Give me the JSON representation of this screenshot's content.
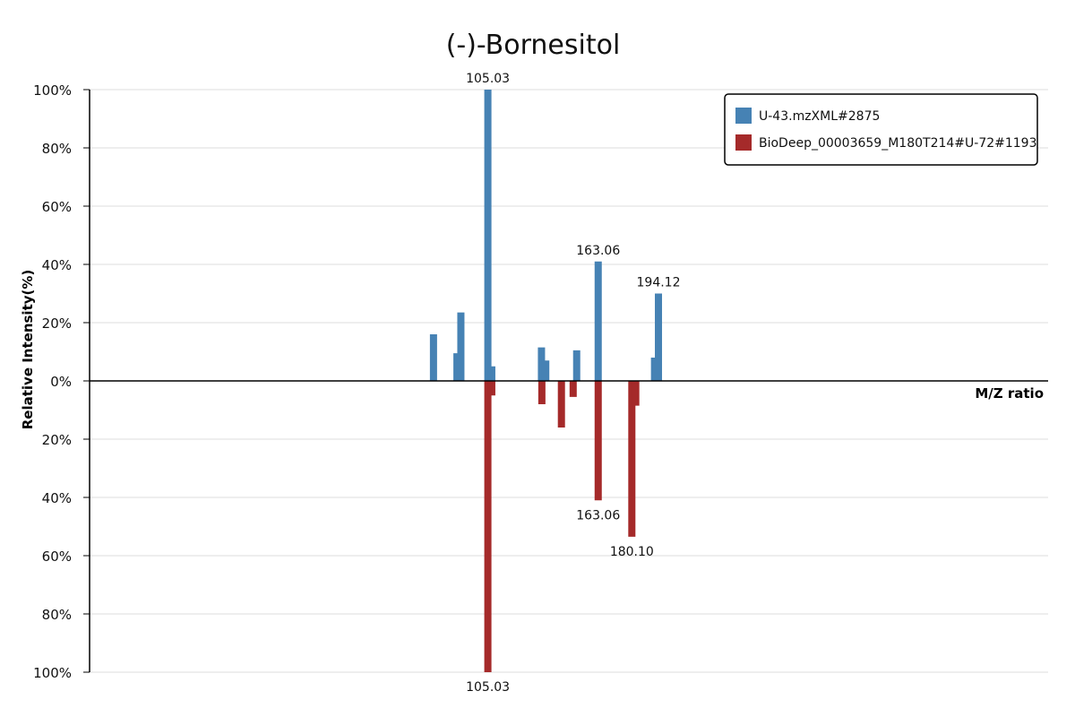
{
  "chart_data": {
    "type": "bar",
    "title": "(-)-Bornesitol",
    "xlabel": "M/Z ratio",
    "ylabel": "Relative Intensity(%)",
    "xlim": [
      0,
      245
    ],
    "ylim_top": [
      0,
      100
    ],
    "ylim_bottom": [
      0,
      100
    ],
    "yticks_top": [
      "100%",
      "80%",
      "60%",
      "40%",
      "20%",
      "0%"
    ],
    "yticks_bottom": [
      "20%",
      "40%",
      "60%",
      "80%",
      "100%"
    ],
    "grid": true,
    "legend_position": "top-right",
    "series": [
      {
        "name": "U-43.mzXML#2875",
        "color": "#4682b4",
        "direction": "up",
        "peaks": [
          {
            "mz": 87.9,
            "intensity": 16
          },
          {
            "mz": 93.9,
            "intensity": 9.5
          },
          {
            "mz": 94.9,
            "intensity": 23.5
          },
          {
            "mz": 101.8,
            "intensity": 100,
            "label": "105.03"
          },
          {
            "mz": 102.8,
            "intensity": 5
          },
          {
            "mz": 115.5,
            "intensity": 11.5
          },
          {
            "mz": 116.6,
            "intensity": 7
          },
          {
            "mz": 124.5,
            "intensity": 10.5
          },
          {
            "mz": 130.0,
            "intensity": 41,
            "label": "163.06"
          },
          {
            "mz": 144.4,
            "intensity": 8
          },
          {
            "mz": 145.4,
            "intensity": 30,
            "label": "194.12"
          }
        ]
      },
      {
        "name": "BioDeep_00003659_M180T214#U-72#1193",
        "color": "#a52a2a",
        "direction": "down",
        "peaks": [
          {
            "mz": 101.8,
            "intensity": 100,
            "label": "105.03"
          },
          {
            "mz": 102.8,
            "intensity": 5
          },
          {
            "mz": 115.6,
            "intensity": 8
          },
          {
            "mz": 120.6,
            "intensity": 16
          },
          {
            "mz": 123.6,
            "intensity": 5.5
          },
          {
            "mz": 130.0,
            "intensity": 41,
            "label": "163.06"
          },
          {
            "mz": 138.6,
            "intensity": 53.5,
            "label": "180.10"
          },
          {
            "mz": 139.6,
            "intensity": 8.5
          }
        ]
      }
    ]
  }
}
